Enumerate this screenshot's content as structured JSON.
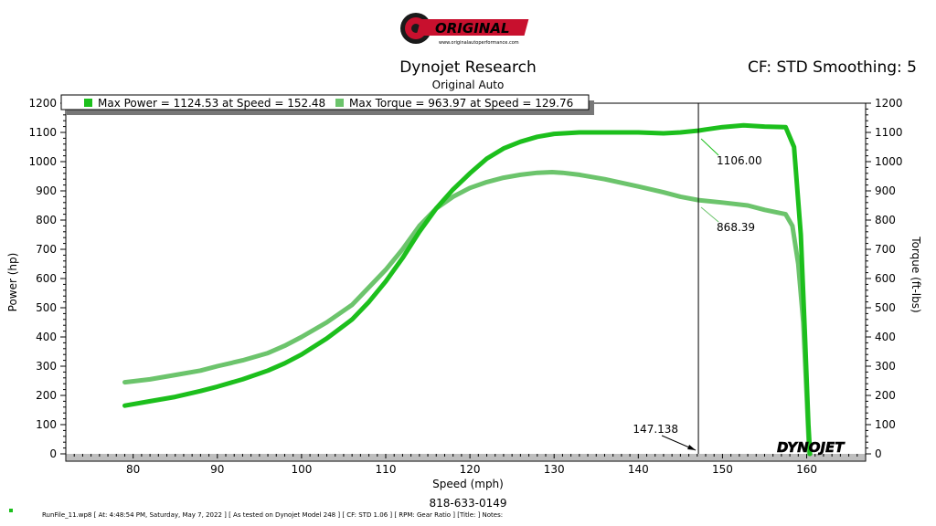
{
  "logo": {
    "text": "ORIGINAL",
    "subtext": "www.originalautoperformance.com"
  },
  "header": {
    "title": "Dynojet Research",
    "subtitle": "Original Auto",
    "cf_label": "CF: STD Smoothing: 5"
  },
  "legend": {
    "power_text": "Max Power = 1124.53 at Speed = 152.48",
    "torque_text": "Max Torque = 963.97 at Speed = 129.76"
  },
  "watermark": "DYNOJET",
  "footer": {
    "phone": "818-633-0149",
    "runfile": "RunFile_11.wp8  [ At:  4:48:54 PM, Saturday, May 7, 2022 ]  [ As tested on Dynojet Model 248 ]  [ CF: STD 1.06 ]  [ RPM:  Gear Ratio ]  [Title: ]   Notes:"
  },
  "colors": {
    "power": "#1cbf1c",
    "torque": "#6cc46c",
    "logo_red": "#c8102e"
  },
  "chart_data": {
    "type": "line",
    "xlabel": "Speed (mph)",
    "ylabel": "Power (hp)",
    "y2label": "Torque (ft-lbs)",
    "xlim": [
      72,
      167
    ],
    "ylim": [
      0,
      1200
    ],
    "x_ticks": [
      80,
      90,
      100,
      110,
      120,
      130,
      140,
      150,
      160
    ],
    "y_ticks": [
      0,
      100,
      200,
      300,
      400,
      500,
      600,
      700,
      800,
      900,
      1000,
      1100,
      1200
    ],
    "cursor": {
      "x": 147.138,
      "label": "147.138",
      "power_label": "1106.00",
      "torque_label": "868.39"
    },
    "grid": false,
    "legend_position": "top-left",
    "series": [
      {
        "key": "power",
        "x": [
          79,
          82,
          85,
          88,
          90,
          93,
          96,
          98,
          100,
          103,
          106,
          108,
          110,
          112,
          114,
          116,
          118,
          120,
          122,
          124,
          126,
          128,
          130,
          133,
          136,
          140,
          143,
          145,
          147.1,
          148,
          150,
          152.5,
          155,
          157.5,
          158.5,
          159.3,
          159.8,
          160.2,
          160.4
        ],
        "values": [
          165,
          180,
          195,
          215,
          230,
          255,
          285,
          310,
          340,
          395,
          460,
          520,
          590,
          670,
          760,
          840,
          905,
          960,
          1010,
          1045,
          1068,
          1085,
          1095,
          1100,
          1100,
          1100,
          1097,
          1100,
          1106,
          1110,
          1118,
          1124.53,
          1120,
          1118,
          1050,
          750,
          400,
          100,
          0
        ]
      },
      {
        "key": "torque",
        "x": [
          79,
          82,
          85,
          88,
          90,
          93,
          96,
          98,
          100,
          103,
          106,
          108,
          110,
          112,
          114,
          116,
          118,
          120,
          122,
          124,
          126,
          128,
          129.76,
          131,
          133,
          136,
          140,
          143,
          145,
          147.1,
          150,
          153,
          155,
          157.5,
          158.3,
          159,
          159.6,
          160,
          160.3
        ],
        "values": [
          245,
          255,
          270,
          285,
          300,
          320,
          345,
          370,
          400,
          450,
          510,
          570,
          630,
          700,
          780,
          840,
          880,
          910,
          930,
          945,
          955,
          962,
          963.97,
          962,
          955,
          940,
          915,
          895,
          880,
          868.39,
          860,
          850,
          835,
          820,
          780,
          650,
          450,
          200,
          0
        ]
      }
    ]
  }
}
